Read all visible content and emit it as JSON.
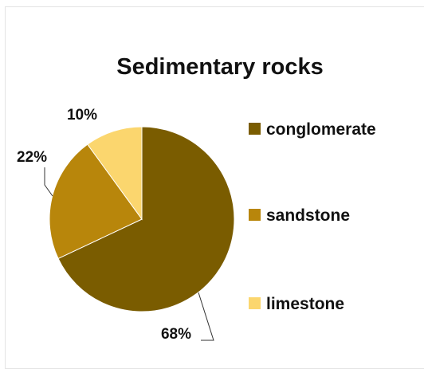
{
  "chart_data": {
    "type": "pie",
    "title": "Sedimentary rocks",
    "slices": [
      {
        "label": "conglomerate",
        "value": 68,
        "display": "68%",
        "color": "#7a5c00"
      },
      {
        "label": "sandstone",
        "value": 22,
        "display": "22%",
        "color": "#b8860b"
      },
      {
        "label": "limestone",
        "value": 10,
        "display": "10%",
        "color": "#fbd66e"
      }
    ],
    "legend_placement": "right",
    "start_angle_deg": 0,
    "direction": "clockwise"
  }
}
